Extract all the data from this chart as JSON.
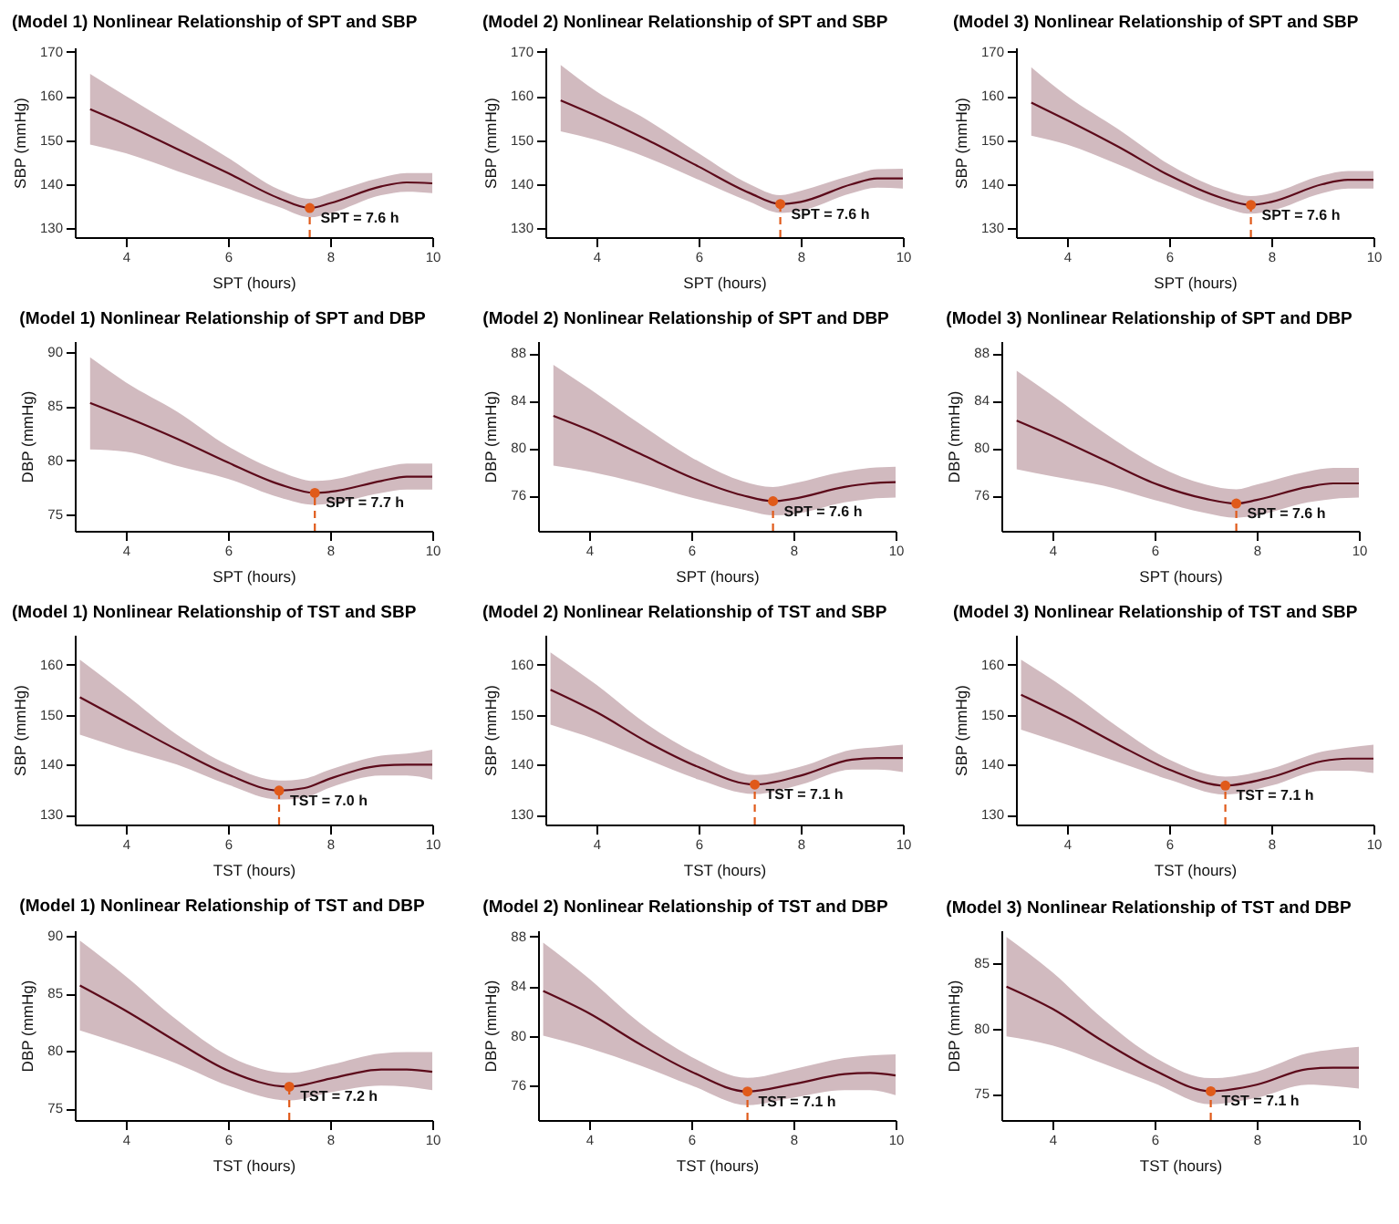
{
  "chart_data": [
    {
      "type": "line",
      "title": "(Model 1) Nonlinear Relationship of SPT and SBP",
      "xlabel": "SPT (hours)",
      "ylabel": "SBP (mmHg)",
      "xlim": [
        3,
        10
      ],
      "xticks": [
        4,
        6,
        8,
        10
      ],
      "ylim": [
        128,
        171
      ],
      "yticks": [
        130,
        140,
        150,
        160,
        170
      ],
      "series": [
        {
          "x": [
            3.3,
            4,
            5,
            6,
            7,
            7.6,
            8,
            9,
            9.5,
            10
          ],
          "color": "#5c0a1a",
          "values": [
            157.0,
            153.5,
            148,
            142.5,
            136.8,
            134.6,
            135.7,
            139.5,
            140.4,
            140.2
          ],
          "lower": [
            149,
            147,
            143,
            139,
            134.8,
            132.5,
            133.4,
            137.5,
            138.3,
            138
          ],
          "upper": [
            165,
            160,
            153,
            146,
            138.8,
            136.7,
            138,
            141.5,
            142.5,
            142.5
          ]
        },
        {
          "type": "scatter",
          "x": [
            7.6
          ],
          "values": [
            134.6
          ],
          "color": "#e05a1a"
        }
      ],
      "ref_lines": [
        {
          "axis": "x",
          "value": 7.6,
          "color": "#e05a1a",
          "line_style": "dashed"
        }
      ],
      "annotations": [
        {
          "text": "SPT = 7.6 h",
          "x": 7.6,
          "y": 134.6
        }
      ]
    },
    {
      "type": "line",
      "title": "(Model 2) Nonlinear Relationship of SPT and SBP",
      "xlabel": "SPT (hours)",
      "ylabel": "SBP (mmHg)",
      "xlim": [
        3,
        10
      ],
      "xticks": [
        4,
        6,
        8,
        10
      ],
      "ylim": [
        128,
        171
      ],
      "yticks": [
        130,
        140,
        150,
        160,
        170
      ],
      "series": [
        {
          "x": [
            3.3,
            4,
            5,
            6,
            7,
            7.6,
            8,
            9,
            9.5,
            10
          ],
          "color": "#5c0a1a",
          "values": [
            159,
            155.5,
            150,
            144,
            138,
            135.5,
            136,
            140,
            141.3,
            141.3
          ],
          "lower": [
            152,
            150,
            146,
            141,
            136,
            133.5,
            134,
            138,
            139.2,
            139
          ],
          "upper": [
            167,
            161,
            154.5,
            147,
            140,
            137.5,
            138.5,
            142,
            143.4,
            143.5
          ]
        },
        {
          "type": "scatter",
          "x": [
            7.6
          ],
          "values": [
            135.5
          ],
          "color": "#e05a1a"
        }
      ],
      "ref_lines": [
        {
          "axis": "x",
          "value": 7.6,
          "color": "#e05a1a",
          "line_style": "dashed"
        }
      ],
      "annotations": [
        {
          "text": "SPT = 7.6 h",
          "x": 7.6,
          "y": 135.5
        }
      ]
    },
    {
      "type": "line",
      "title": "(Model 3) Nonlinear Relationship of SPT and SBP",
      "xlabel": "SPT (hours)",
      "ylabel": "SBP (mmHg)",
      "xlim": [
        3,
        10
      ],
      "xticks": [
        4,
        6,
        8,
        10
      ],
      "ylim": [
        128,
        171
      ],
      "yticks": [
        130,
        140,
        150,
        160,
        170
      ],
      "series": [
        {
          "x": [
            3.3,
            4,
            5,
            6,
            7,
            7.6,
            8,
            9,
            9.5,
            10
          ],
          "color": "#5c0a1a",
          "values": [
            158.5,
            154.5,
            148.5,
            142,
            137,
            135.3,
            136,
            140,
            141,
            141
          ],
          "lower": [
            151,
            149,
            144.5,
            139.5,
            135,
            133.3,
            134,
            138,
            139,
            139
          ],
          "upper": [
            166.5,
            160,
            152.5,
            144.5,
            139,
            137.3,
            138,
            142,
            143,
            143
          ]
        },
        {
          "type": "scatter",
          "x": [
            7.6
          ],
          "values": [
            135.3
          ],
          "color": "#e05a1a"
        }
      ],
      "ref_lines": [
        {
          "axis": "x",
          "value": 7.6,
          "color": "#e05a1a",
          "line_style": "dashed"
        }
      ],
      "annotations": [
        {
          "text": "SPT = 7.6 h",
          "x": 7.6,
          "y": 135.3
        }
      ]
    },
    {
      "type": "line",
      "title": "(Model 1) Nonlinear Relationship of SPT and DBP",
      "xlabel": "SPT (hours)",
      "ylabel": "DBP (mmHg)",
      "xlim": [
        3,
        10
      ],
      "xticks": [
        4,
        6,
        8,
        10
      ],
      "ylim": [
        73.5,
        91
      ],
      "yticks": [
        75,
        80,
        85,
        90
      ],
      "series": [
        {
          "x": [
            3.3,
            4,
            5,
            6,
            7,
            7.7,
            8,
            9,
            9.5,
            10
          ],
          "color": "#5c0a1a",
          "values": [
            85.3,
            84,
            82,
            79.8,
            77.8,
            77.0,
            77.1,
            78.1,
            78.5,
            78.5
          ],
          "lower": [
            81,
            80.8,
            79.5,
            78.3,
            76.6,
            75.9,
            76,
            77,
            77.3,
            77.3
          ],
          "upper": [
            89.5,
            87.2,
            84.5,
            81.3,
            79,
            78.1,
            78.2,
            79.3,
            79.7,
            79.7
          ]
        },
        {
          "type": "scatter",
          "x": [
            7.7
          ],
          "values": [
            77.0
          ],
          "color": "#e05a1a"
        }
      ],
      "ref_lines": [
        {
          "axis": "x",
          "value": 7.7,
          "color": "#e05a1a",
          "line_style": "dashed"
        }
      ],
      "annotations": [
        {
          "text": "SPT = 7.7 h",
          "x": 7.7,
          "y": 77.0
        }
      ]
    },
    {
      "type": "line",
      "title": "(Model 2) Nonlinear Relationship of SPT and DBP",
      "xlabel": "SPT (hours)",
      "ylabel": "DBP (mmHg)",
      "xlim": [
        3,
        10
      ],
      "xticks": [
        4,
        6,
        8,
        10
      ],
      "ylim": [
        73,
        89
      ],
      "yticks": [
        76,
        80,
        84,
        88
      ],
      "series": [
        {
          "x": [
            3.3,
            4,
            5,
            6,
            7,
            7.6,
            8,
            9,
            9.5,
            10
          ],
          "color": "#5c0a1a",
          "values": [
            82.7,
            81.5,
            79.5,
            77.5,
            76,
            75.5,
            75.7,
            76.7,
            77,
            77.1
          ],
          "lower": [
            78.5,
            78,
            77,
            75.8,
            74.8,
            74.3,
            74.4,
            75.4,
            75.7,
            75.8
          ],
          "upper": [
            87,
            85,
            82,
            79.2,
            77.2,
            76.7,
            77,
            78,
            78.3,
            78.4
          ]
        },
        {
          "type": "scatter",
          "x": [
            7.6
          ],
          "values": [
            75.5
          ],
          "color": "#e05a1a"
        }
      ],
      "ref_lines": [
        {
          "axis": "x",
          "value": 7.6,
          "color": "#e05a1a",
          "line_style": "dashed"
        }
      ],
      "annotations": [
        {
          "text": "SPT = 7.6 h",
          "x": 7.6,
          "y": 75.5
        }
      ]
    },
    {
      "type": "line",
      "title": "(Model 3) Nonlinear Relationship of SPT and DBP",
      "xlabel": "SPT (hours)",
      "ylabel": "DBP (mmHg)",
      "xlim": [
        3,
        10
      ],
      "xticks": [
        4,
        6,
        8,
        10
      ],
      "ylim": [
        73,
        89
      ],
      "yticks": [
        76,
        80,
        84,
        88
      ],
      "series": [
        {
          "x": [
            3.3,
            4,
            5,
            6,
            7,
            7.6,
            8,
            9,
            9.5,
            10
          ],
          "color": "#5c0a1a",
          "values": [
            82.3,
            81,
            79,
            77,
            75.7,
            75.3,
            75.6,
            76.7,
            77,
            77
          ],
          "lower": [
            78.2,
            77.6,
            76.8,
            75.6,
            74.5,
            74.1,
            74.3,
            75.4,
            75.7,
            75.8
          ],
          "upper": [
            86.5,
            84.4,
            81.3,
            78.6,
            76.9,
            76.5,
            76.9,
            78,
            78.3,
            78.3
          ]
        },
        {
          "type": "scatter",
          "x": [
            7.6
          ],
          "values": [
            75.3
          ],
          "color": "#e05a1a"
        }
      ],
      "ref_lines": [
        {
          "axis": "x",
          "value": 7.6,
          "color": "#e05a1a",
          "line_style": "dashed"
        }
      ],
      "annotations": [
        {
          "text": "SPT = 7.6 h",
          "x": 7.6,
          "y": 75.3
        }
      ]
    },
    {
      "type": "line",
      "title": "(Model 1) Nonlinear Relationship of TST and SBP",
      "xlabel": "TST (hours)",
      "ylabel": "SBP (mmHg)",
      "xlim": [
        3,
        10
      ],
      "xticks": [
        4,
        6,
        8,
        10
      ],
      "ylim": [
        128,
        166
      ],
      "yticks": [
        130,
        140,
        150,
        160
      ],
      "series": [
        {
          "x": [
            3.1,
            4,
            5,
            6,
            7,
            7.5,
            8,
            9,
            9.5,
            10
          ],
          "color": "#5c0a1a",
          "values": [
            153.5,
            148.5,
            143,
            138,
            134.8,
            135.3,
            137.2,
            139.8,
            140,
            140
          ],
          "lower": [
            146,
            143,
            140,
            136,
            133,
            133.4,
            135.4,
            137.8,
            137.8,
            137
          ],
          "upper": [
            161,
            154,
            146,
            140,
            136.8,
            137.2,
            139,
            141.8,
            142.2,
            143
          ]
        },
        {
          "type": "scatter",
          "x": [
            7.0
          ],
          "values": [
            134.8
          ],
          "color": "#e05a1a"
        }
      ],
      "ref_lines": [
        {
          "axis": "x",
          "value": 7.0,
          "color": "#e05a1a",
          "line_style": "dashed"
        }
      ],
      "annotations": [
        {
          "text": "TST = 7.0 h",
          "x": 7.0,
          "y": 134.8
        }
      ]
    },
    {
      "type": "line",
      "title": "(Model 2) Nonlinear Relationship of TST and SBP",
      "xlabel": "TST (hours)",
      "ylabel": "SBP (mmHg)",
      "xlim": [
        3,
        10
      ],
      "xticks": [
        4,
        6,
        8,
        10
      ],
      "ylim": [
        128,
        166
      ],
      "yticks": [
        130,
        140,
        150,
        160
      ],
      "series": [
        {
          "x": [
            3.1,
            4,
            5,
            6,
            7.1,
            8,
            9,
            9.5,
            10
          ],
          "color": "#5c0a1a",
          "values": [
            155,
            150.5,
            144.5,
            139.5,
            136.0,
            137.8,
            141,
            141.3,
            141.3
          ],
          "lower": [
            148,
            145,
            141,
            137,
            134.1,
            136,
            139,
            139,
            138.5
          ],
          "upper": [
            162.5,
            156,
            148,
            142,
            137.9,
            139.6,
            143,
            143.5,
            144
          ]
        },
        {
          "type": "scatter",
          "x": [
            7.1
          ],
          "values": [
            136.0
          ],
          "color": "#e05a1a"
        }
      ],
      "ref_lines": [
        {
          "axis": "x",
          "value": 7.1,
          "color": "#e05a1a",
          "line_style": "dashed"
        }
      ],
      "annotations": [
        {
          "text": "TST = 7.1 h",
          "x": 7.1,
          "y": 136.0
        }
      ]
    },
    {
      "type": "line",
      "title": "(Model 3) Nonlinear Relationship of TST and SBP",
      "xlabel": "TST (hours)",
      "ylabel": "SBP (mmHg)",
      "xlim": [
        3,
        10
      ],
      "xticks": [
        4,
        6,
        8,
        10
      ],
      "ylim": [
        128,
        166
      ],
      "yticks": [
        130,
        140,
        150,
        160
      ],
      "series": [
        {
          "x": [
            3.1,
            4,
            5,
            6,
            7.1,
            8,
            9,
            9.5,
            10
          ],
          "color": "#5c0a1a",
          "values": [
            154,
            149.5,
            144,
            139,
            135.8,
            137.5,
            140.7,
            141.2,
            141.2
          ],
          "lower": [
            147,
            144,
            140.5,
            137,
            134,
            135.8,
            138.8,
            138.8,
            138.3
          ],
          "upper": [
            161,
            155,
            147.5,
            141,
            137.6,
            139.2,
            142.6,
            143.4,
            144
          ]
        },
        {
          "type": "scatter",
          "x": [
            7.1
          ],
          "values": [
            135.8
          ],
          "color": "#e05a1a"
        }
      ],
      "ref_lines": [
        {
          "axis": "x",
          "value": 7.1,
          "color": "#e05a1a",
          "line_style": "dashed"
        }
      ],
      "annotations": [
        {
          "text": "TST = 7.1 h",
          "x": 7.1,
          "y": 135.8
        }
      ]
    },
    {
      "type": "line",
      "title": "(Model 1) Nonlinear Relationship of TST and DBP",
      "xlabel": "TST (hours)",
      "ylabel": "DBP (mmHg)",
      "xlim": [
        3,
        10
      ],
      "xticks": [
        4,
        6,
        8,
        10
      ],
      "ylim": [
        74,
        90.5
      ],
      "yticks": [
        75,
        80,
        85,
        90
      ],
      "series": [
        {
          "x": [
            3.1,
            4,
            5,
            6,
            7.2,
            8,
            9,
            9.5,
            10
          ],
          "color": "#5c0a1a",
          "values": [
            85.7,
            83.5,
            80.8,
            78.3,
            76.9,
            77.6,
            78.4,
            78.4,
            78.2
          ],
          "lower": [
            81.8,
            80.5,
            78.9,
            77,
            75.7,
            76.4,
            77,
            76.9,
            76.6
          ],
          "upper": [
            89.6,
            86.5,
            82.7,
            79.6,
            78.1,
            78.8,
            79.8,
            79.9,
            79.9
          ]
        },
        {
          "type": "scatter",
          "x": [
            7.2
          ],
          "values": [
            76.9
          ],
          "color": "#e05a1a"
        }
      ],
      "ref_lines": [
        {
          "axis": "x",
          "value": 7.2,
          "color": "#e05a1a",
          "line_style": "dashed"
        }
      ],
      "annotations": [
        {
          "text": "TST = 7.2 h",
          "x": 7.2,
          "y": 76.9
        }
      ]
    },
    {
      "type": "line",
      "title": "(Model 2) Nonlinear Relationship of TST and DBP",
      "xlabel": "TST (hours)",
      "ylabel": "DBP (mmHg)",
      "xlim": [
        3,
        10
      ],
      "xticks": [
        4,
        6,
        8,
        10
      ],
      "ylim": [
        73.2,
        88.5
      ],
      "yticks": [
        76,
        80,
        84,
        88
      ],
      "series": [
        {
          "x": [
            3.1,
            4,
            5,
            6,
            7.1,
            8,
            9,
            9.5,
            10
          ],
          "color": "#5c0a1a",
          "values": [
            83.6,
            81.8,
            79.3,
            77.1,
            75.5,
            76.1,
            76.9,
            77,
            76.8
          ],
          "lower": [
            80,
            79,
            77.6,
            76,
            74.4,
            75,
            75.6,
            75.6,
            75.2
          ],
          "upper": [
            87.5,
            84.6,
            81,
            78.3,
            76.6,
            77.3,
            78.2,
            78.4,
            78.5
          ]
        },
        {
          "type": "scatter",
          "x": [
            7.1
          ],
          "values": [
            75.5
          ],
          "color": "#e05a1a"
        }
      ],
      "ref_lines": [
        {
          "axis": "x",
          "value": 7.1,
          "color": "#e05a1a",
          "line_style": "dashed"
        }
      ],
      "annotations": [
        {
          "text": "TST = 7.1 h",
          "x": 7.1,
          "y": 75.5
        }
      ]
    },
    {
      "type": "line",
      "title": "(Model 3) Nonlinear Relationship of TST and DBP",
      "xlabel": "TST (hours)",
      "ylabel": "DBP (mmHg)",
      "xlim": [
        3,
        10
      ],
      "xticks": [
        4,
        6,
        8,
        10
      ],
      "ylim": [
        73,
        87.5
      ],
      "yticks": [
        75,
        80,
        85
      ],
      "series": [
        {
          "x": [
            3.1,
            4,
            5,
            6,
            7.1,
            8,
            9,
            9.5,
            10
          ],
          "color": "#5c0a1a",
          "values": [
            83.2,
            81.5,
            79,
            76.8,
            75.2,
            75.7,
            76.9,
            77,
            77
          ],
          "lower": [
            79.4,
            78.7,
            77.3,
            75.8,
            74.2,
            74.7,
            75.7,
            75.6,
            75.4
          ],
          "upper": [
            87,
            84.3,
            80.7,
            77.8,
            76.2,
            76.7,
            78.1,
            78.4,
            78.6
          ]
        },
        {
          "type": "scatter",
          "x": [
            7.1
          ],
          "values": [
            75.2
          ],
          "color": "#e05a1a"
        }
      ],
      "ref_lines": [
        {
          "axis": "x",
          "value": 7.1,
          "color": "#e05a1a",
          "line_style": "dashed"
        }
      ],
      "annotations": [
        {
          "text": "TST = 7.1 h",
          "x": 7.1,
          "y": 75.2
        }
      ]
    }
  ]
}
